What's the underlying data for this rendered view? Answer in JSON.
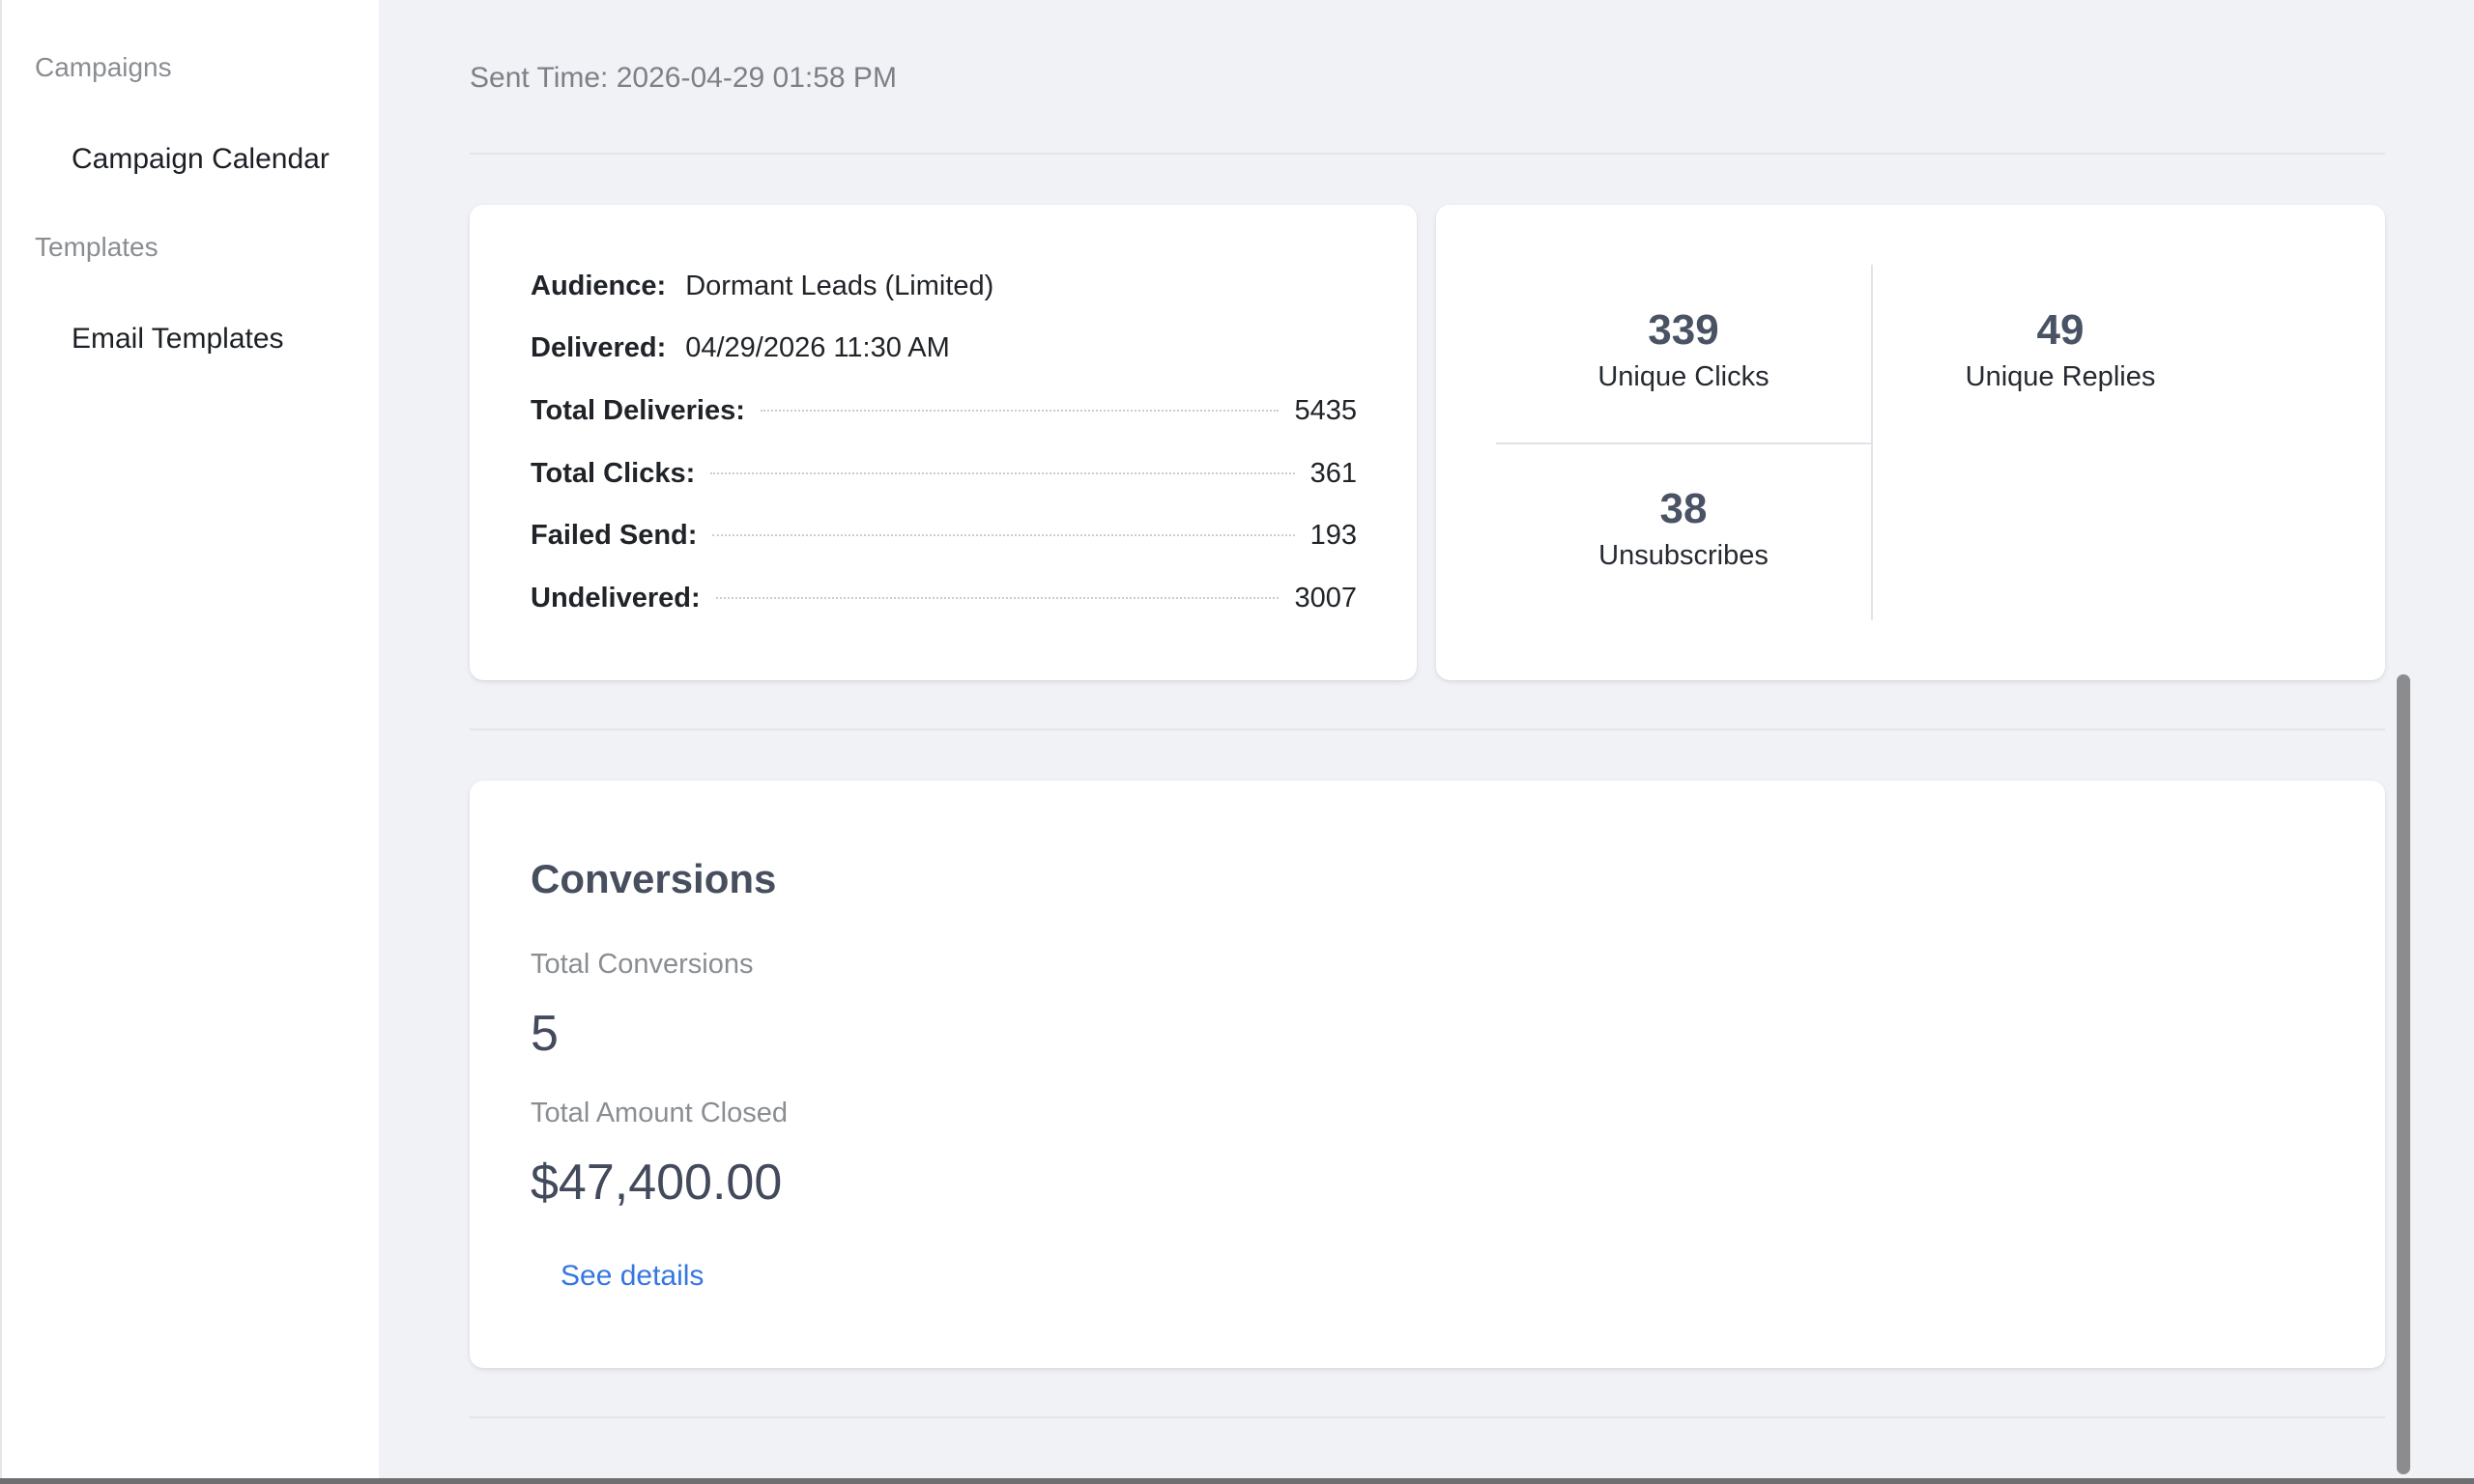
{
  "sidebar": {
    "sections": [
      {
        "label": "Campaigns",
        "items": [
          {
            "label": "Campaign Calendar"
          }
        ]
      },
      {
        "label": "Templates",
        "items": [
          {
            "label": "Email Templates"
          }
        ]
      }
    ]
  },
  "header": {
    "sent_time": "Sent Time: 2026-04-29 01:58 PM"
  },
  "details": {
    "audience_label": "Audience:",
    "audience_value": "Dormant Leads (Limited)",
    "delivered_label": "Delivered:",
    "delivered_value": "04/29/2026 11:30 AM",
    "rows": [
      {
        "label": "Total Deliveries:",
        "value": "5435"
      },
      {
        "label": "Total Clicks:",
        "value": "361"
      },
      {
        "label": "Failed Send:",
        "value": "193"
      },
      {
        "label": "Undelivered:",
        "value": "3007"
      }
    ]
  },
  "stats": {
    "unique_clicks": {
      "value": "339",
      "label": "Unique Clicks"
    },
    "unique_replies": {
      "value": "49",
      "label": "Unique Replies"
    },
    "unsubscribes": {
      "value": "38",
      "label": "Unsubscribes"
    }
  },
  "conversions": {
    "title": "Conversions",
    "total_conversions_label": "Total Conversions",
    "total_conversions_value": "5",
    "total_amount_label": "Total Amount Closed",
    "total_amount_value": "$47,400.00",
    "details_link": "See details"
  },
  "colors": {
    "accent_link": "#3677e0",
    "stat_number": "#4a5364",
    "background": "#f1f2f6"
  }
}
